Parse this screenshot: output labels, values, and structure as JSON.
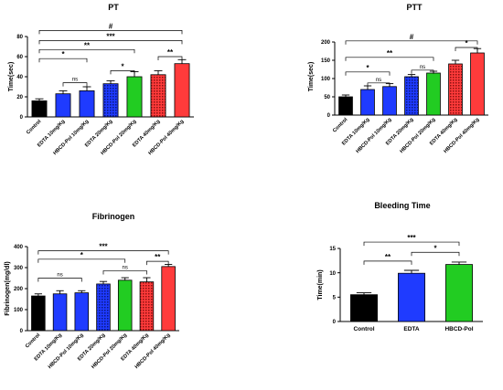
{
  "colors": {
    "control": "#000000",
    "edta": "#1f3bff",
    "hbcd": "#22cc22",
    "red": "#ff3b3b",
    "bar_stroke": "#000000"
  },
  "chart_data": [
    {
      "id": "pt",
      "type": "bar",
      "title": "PT",
      "ylabel": "Time(sec)",
      "xlabel": "",
      "ylim": [
        0,
        80
      ],
      "yticks": [
        0,
        20,
        40,
        60,
        80
      ],
      "categories": [
        "Control",
        "EDTA 10mg/Kg",
        "HBCD-Pol 10mg/Kg",
        "EDTA 20mg/Kg",
        "HBCD-Pol 20mg/Kg",
        "EDTA 40mg/Kg",
        "HBCD-Pol 40mg/Kg"
      ],
      "values": [
        16,
        23,
        26,
        33,
        40,
        42,
        53
      ],
      "errors": [
        2,
        3,
        4,
        3,
        5,
        4,
        4
      ],
      "patterns": [
        "control",
        "edta",
        "edta",
        "edta-hatch",
        "hbcd",
        "red-hatch",
        "red"
      ],
      "brackets": [
        {
          "label": "*",
          "from": 0,
          "to": 2,
          "y": 58
        },
        {
          "label": "ns",
          "from": 1,
          "to": 2,
          "y": 34
        },
        {
          "label": "*",
          "from": 3,
          "to": 4,
          "y": 46
        },
        {
          "label": "**",
          "from": 0,
          "to": 4,
          "y": 67
        },
        {
          "label": "**",
          "from": 5,
          "to": 6,
          "y": 60
        },
        {
          "label": "***",
          "from": 0,
          "to": 6,
          "y": 76
        },
        {
          "label": "#",
          "from": 0,
          "to": 6,
          "y": 86
        }
      ]
    },
    {
      "id": "ptt",
      "type": "bar",
      "title": "PTT",
      "ylabel": "Time(sec)",
      "xlabel": "",
      "ylim": [
        0,
        200
      ],
      "yticks": [
        0,
        50,
        100,
        150,
        200
      ],
      "categories": [
        "Control",
        "EDTA 10mg/Kg",
        "HBCD-Pol 10mg/Kg",
        "EDTA 20mg/Kg",
        "HBCD-Pol 20mg/Kg",
        "EDTA 40mg/Kg",
        "HBCD-Pol 40mg/Kg"
      ],
      "values": [
        50,
        70,
        78,
        105,
        115,
        140,
        170
      ],
      "errors": [
        5,
        10,
        8,
        6,
        5,
        10,
        12
      ],
      "patterns": [
        "control",
        "edta",
        "edta",
        "edta-hatch",
        "hbcd",
        "red-hatch",
        "red"
      ],
      "brackets": [
        {
          "label": "*",
          "from": 0,
          "to": 2,
          "y": 118
        },
        {
          "label": "ns",
          "from": 1,
          "to": 2,
          "y": 88
        },
        {
          "label": "ns",
          "from": 3,
          "to": 4,
          "y": 123
        },
        {
          "label": "**",
          "from": 0,
          "to": 4,
          "y": 158
        },
        {
          "label": "*",
          "from": 5,
          "to": 6,
          "y": 185
        },
        {
          "label": "#",
          "from": 0,
          "to": 6,
          "y": 203
        }
      ]
    },
    {
      "id": "fibrinogen",
      "type": "bar",
      "title": "Fibrinogen",
      "ylabel": "Fibrinogen(mg/dl)",
      "xlabel": "",
      "ylim": [
        0,
        400
      ],
      "yticks": [
        0,
        100,
        200,
        300,
        400
      ],
      "categories": [
        "Control",
        "EDTA 10mg/Kg",
        "HBCD-Pol 10mg/Kg",
        "EDTA 20mg/Kg",
        "HBCD-Pol 20mg/Kg",
        "EDTA 40mg/Kg",
        "HBCD-Pol 40mg/Kg"
      ],
      "values": [
        165,
        175,
        180,
        222,
        240,
        232,
        305
      ],
      "errors": [
        10,
        15,
        10,
        12,
        12,
        20,
        10
      ],
      "patterns": [
        "control",
        "edta",
        "edta",
        "edta-hatch",
        "hbcd",
        "red-hatch",
        "red"
      ],
      "brackets": [
        {
          "label": "ns",
          "from": 0,
          "to": 2,
          "y": 250
        },
        {
          "label": "ns",
          "from": 3,
          "to": 5,
          "y": 285
        },
        {
          "label": "**",
          "from": 5,
          "to": 6,
          "y": 330
        },
        {
          "label": "*",
          "from": 0,
          "to": 4,
          "y": 340
        },
        {
          "label": "***",
          "from": 0,
          "to": 6,
          "y": 380
        }
      ]
    },
    {
      "id": "bleeding",
      "type": "bar",
      "title": "Bleeding Time",
      "ylabel": "Time(min)",
      "xlabel": "",
      "ylim": [
        0,
        15
      ],
      "yticks": [
        0,
        5,
        10,
        15
      ],
      "categories": [
        "Control",
        "EDTA",
        "HBCD-Pol"
      ],
      "values": [
        5.5,
        9.9,
        11.7
      ],
      "errors": [
        0.4,
        0.6,
        0.5
      ],
      "patterns": [
        "control",
        "edta",
        "hbcd"
      ],
      "brackets": [
        {
          "label": "**",
          "from": 0,
          "to": 1,
          "y": 12.4
        },
        {
          "label": "*",
          "from": 1,
          "to": 2,
          "y": 14.2
        },
        {
          "label": "***",
          "from": 0,
          "to": 2,
          "y": 16.3
        }
      ]
    }
  ]
}
